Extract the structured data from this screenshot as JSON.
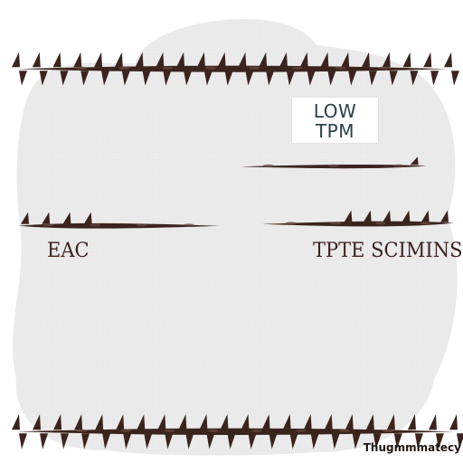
{
  "labels": {
    "box_line1": "LOW",
    "box_line2": "TPM",
    "left_label": "EAC",
    "right_label": "TPTE SCIMINS",
    "footer": "Thugmmmatecy"
  },
  "colors": {
    "thorn": "#3b241d",
    "thorn_highlight": "#6b4a3f",
    "cloud": "#efefef",
    "box_text": "#2c4146"
  }
}
